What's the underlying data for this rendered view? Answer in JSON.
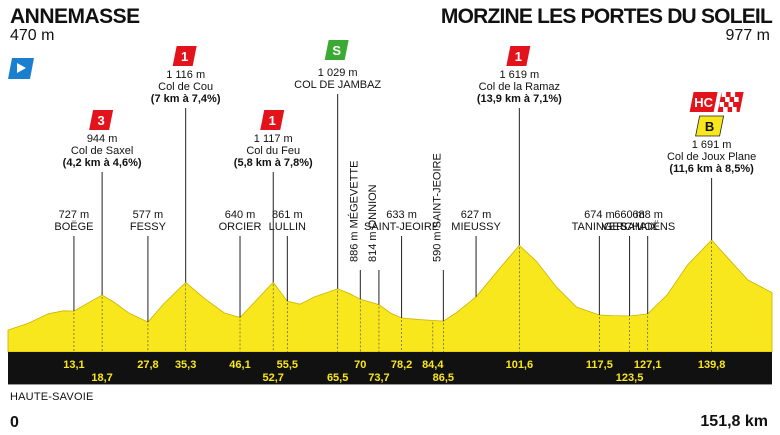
{
  "stage": {
    "start": {
      "name": "ANNEMASSE",
      "altitude": "470 m"
    },
    "finish": {
      "name": "MORZINE LES PORTES DU SOLEIL",
      "altitude": "977 m"
    },
    "region": "HAUTE-SAVOIE",
    "km_start": "0",
    "km_total": "151,8 km"
  },
  "climbs": [
    {
      "km": 18.7,
      "category": "3",
      "alt": "944 m",
      "name": "Col de Saxel",
      "detail": "(4,2 km à 4,6%)"
    },
    {
      "km": 35.3,
      "category": "1",
      "alt": "1 116 m",
      "name": "Col de Cou",
      "detail": "(7 km à 7,4%)"
    },
    {
      "km": 52.7,
      "category": "1",
      "alt": "1 117 m",
      "name": "Col du Feu",
      "detail": "(5,8 km à 7,8%)"
    },
    {
      "km": 101.6,
      "category": "1",
      "alt": "1 619 m",
      "name": "Col de la Ramaz",
      "detail": "(13,9 km à 7,1%)"
    },
    {
      "km": 139.8,
      "category": "HC",
      "alt": "1 691 m",
      "name": "Col de Joux Plane",
      "detail": "(11,6 km à 8,5%)"
    }
  ],
  "sprint": {
    "km": 65.5,
    "label": "S",
    "alt": "1 029 m",
    "name": "COL DE JAMBAZ"
  },
  "bonus": {
    "km": 139.8,
    "label": "B"
  },
  "places": [
    {
      "km": 13.1,
      "alt": "727 m",
      "name": "BOËGE"
    },
    {
      "km": 27.8,
      "alt": "577 m",
      "name": "FESSY"
    },
    {
      "km": 46.1,
      "alt": "640 m",
      "name": "ORCIER"
    },
    {
      "km": 55.5,
      "alt": "861 m",
      "name": "LULLIN"
    },
    {
      "km": 78.2,
      "alt": "633 m",
      "name": "SAINT-JEOIRE"
    },
    {
      "km": 93.0,
      "alt": "627 m",
      "name": "MIEUSSY"
    },
    {
      "km": 117.5,
      "alt": "674 m",
      "name": "TANINGES"
    },
    {
      "km": 123.5,
      "alt": "660 m",
      "name": "VERCHAIX"
    },
    {
      "km": 127.1,
      "alt": "688 m",
      "name": "SAMOËNS"
    }
  ],
  "vertical_places": [
    {
      "km": 70,
      "text": "886 m MÉGEVETTE"
    },
    {
      "km": 73.7,
      "text": "814 m ONNION"
    },
    {
      "km": 86.5,
      "text": "590 m SAINT-JEOIRE"
    }
  ],
  "km_marks": [
    {
      "km": 13.1,
      "label": "13,1",
      "row": 0
    },
    {
      "km": 18.7,
      "label": "18,7",
      "row": 1
    },
    {
      "km": 27.8,
      "label": "27,8",
      "row": 0
    },
    {
      "km": 35.3,
      "label": "35,3",
      "row": 0
    },
    {
      "km": 46.1,
      "label": "46,1",
      "row": 0
    },
    {
      "km": 52.7,
      "label": "52,7",
      "row": 1
    },
    {
      "km": 55.5,
      "label": "55,5",
      "row": 0
    },
    {
      "km": 65.5,
      "label": "65,5",
      "row": 1
    },
    {
      "km": 70,
      "label": "70",
      "row": 0
    },
    {
      "km": 73.7,
      "label": "73,7",
      "row": 1
    },
    {
      "km": 78.2,
      "label": "78,2",
      "row": 0
    },
    {
      "km": 84.4,
      "label": "84,4",
      "row": 0
    },
    {
      "km": 86.5,
      "label": "86,5",
      "row": 1
    },
    {
      "km": 101.6,
      "label": "101,6",
      "row": 0
    },
    {
      "km": 117.5,
      "label": "117,5",
      "row": 0
    },
    {
      "km": 123.5,
      "label": "123,5",
      "row": 1
    },
    {
      "km": 127.1,
      "label": "127,1",
      "row": 0
    },
    {
      "km": 139.8,
      "label": "139,8",
      "row": 0
    }
  ],
  "profile": [
    [
      0,
      470
    ],
    [
      4,
      560
    ],
    [
      8,
      690
    ],
    [
      11,
      730
    ],
    [
      13.1,
      727
    ],
    [
      16,
      840
    ],
    [
      18.7,
      944
    ],
    [
      21,
      850
    ],
    [
      24,
      700
    ],
    [
      27.8,
      577
    ],
    [
      31,
      830
    ],
    [
      35.3,
      1116
    ],
    [
      39,
      900
    ],
    [
      43,
      700
    ],
    [
      46.1,
      640
    ],
    [
      49,
      850
    ],
    [
      52.7,
      1117
    ],
    [
      55.5,
      861
    ],
    [
      58,
      820
    ],
    [
      61,
      920
    ],
    [
      65.5,
      1029
    ],
    [
      68,
      960
    ],
    [
      70,
      886
    ],
    [
      73.7,
      814
    ],
    [
      76,
      700
    ],
    [
      78.2,
      633
    ],
    [
      82,
      610
    ],
    [
      84.4,
      600
    ],
    [
      86.5,
      590
    ],
    [
      89,
      700
    ],
    [
      93,
      920
    ],
    [
      97,
      1250
    ],
    [
      101.6,
      1619
    ],
    [
      105,
      1400
    ],
    [
      109,
      1050
    ],
    [
      113,
      780
    ],
    [
      117.5,
      674
    ],
    [
      120,
      665
    ],
    [
      123.5,
      660
    ],
    [
      127.1,
      688
    ],
    [
      131,
      950
    ],
    [
      135,
      1350
    ],
    [
      139.8,
      1691
    ],
    [
      143,
      1450
    ],
    [
      147,
      1150
    ],
    [
      151.8,
      977
    ]
  ],
  "colors": {
    "profile_fill": "#f8e71c",
    "profile_edge": "#ccb300",
    "km_band": "#111111",
    "km_text": "#f8e71c",
    "climb_badge": "#e3131b",
    "hc_badge": "#e3131b",
    "sprint_badge": "#3aaa35",
    "bonus_badge": "#f8e71c",
    "start_flag": "#1b7fd0"
  },
  "icons": {
    "start": "start-flag-icon",
    "finish": "checkered-finish-flag-icon"
  }
}
